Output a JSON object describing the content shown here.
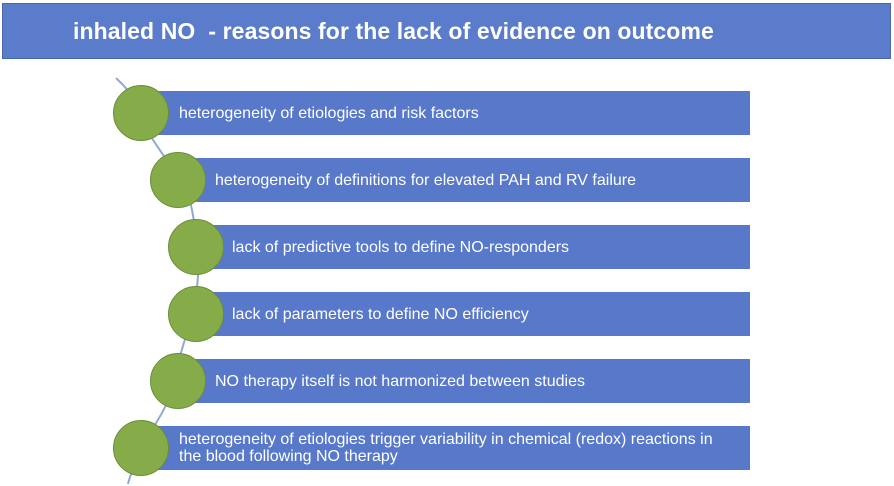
{
  "title": "inhaled NO  - reasons for the lack of evidence on outcome",
  "items": [
    {
      "text": "heterogeneity of etiologies and risk factors"
    },
    {
      "text": "heterogeneity of definitions for elevated PAH and RV failure"
    },
    {
      "text": "lack of predictive tools to define NO-responders"
    },
    {
      "text": "lack of parameters to define NO efficiency"
    },
    {
      "text": "NO therapy itself is not harmonized between studies"
    },
    {
      "text": "heterogeneity of etiologies trigger variability in chemical (redox) reactions in the blood following NO therapy"
    }
  ],
  "colors": {
    "title_bg": "#5b7ccb",
    "bar_bg": "#5878c9",
    "bubble": "#86ab49",
    "text": "#ffffff",
    "connector": "#8fa9d6"
  }
}
